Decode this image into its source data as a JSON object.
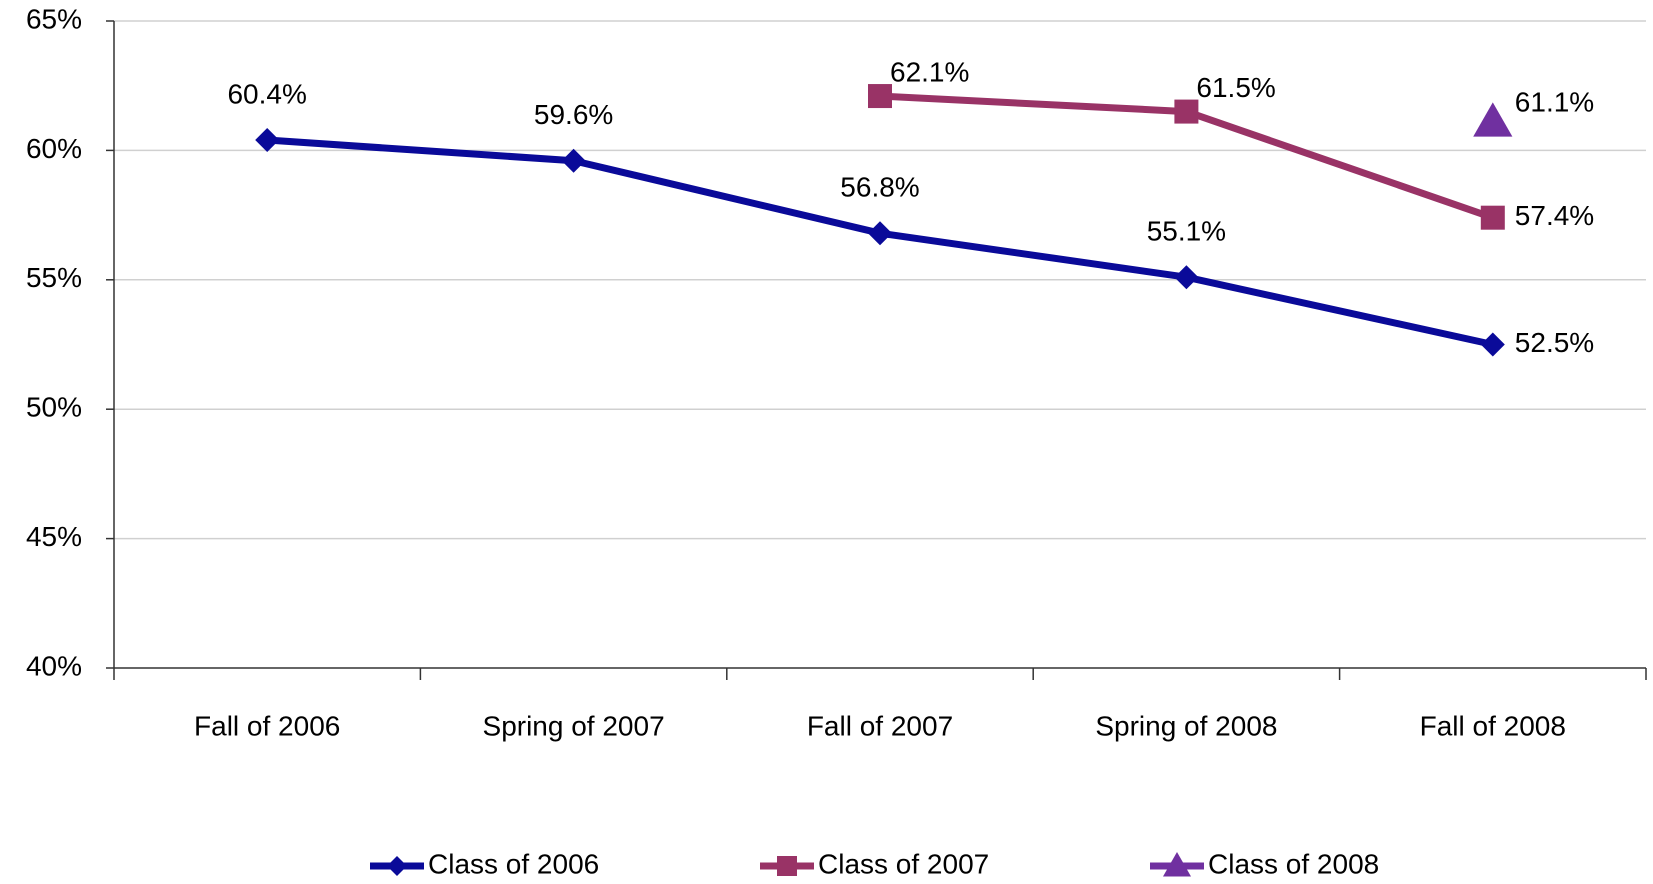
{
  "chart_data": {
    "type": "line",
    "categories": [
      "Fall of 2006",
      "Spring of 2007",
      "Fall of 2007",
      "Spring of 2008",
      "Fall of 2008"
    ],
    "series": [
      {
        "name": "Class of 2006",
        "color": "#0a0a99",
        "marker": "diamond",
        "values": [
          60.4,
          59.6,
          56.8,
          55.1,
          52.5
        ],
        "value_labels": [
          "60.4%",
          "59.6%",
          "56.8%",
          "55.1%",
          "52.5%"
        ]
      },
      {
        "name": "Class of 2007",
        "color": "#993366",
        "marker": "square",
        "values": [
          null,
          null,
          62.1,
          61.5,
          57.4
        ],
        "value_labels": [
          null,
          null,
          "62.1%",
          "61.5%",
          "57.4%"
        ]
      },
      {
        "name": "Class of 2008",
        "color": "#7030a0",
        "marker": "triangle",
        "values": [
          null,
          null,
          null,
          null,
          61.1
        ],
        "value_labels": [
          null,
          null,
          null,
          null,
          "61.1%"
        ]
      }
    ],
    "ylim": [
      40,
      65
    ],
    "yticks": [
      {
        "value": 40,
        "label": "40%"
      },
      {
        "value": 45,
        "label": "45%"
      },
      {
        "value": 50,
        "label": "50%"
      },
      {
        "value": 55,
        "label": "55%"
      },
      {
        "value": 60,
        "label": "60%"
      },
      {
        "value": 65,
        "label": "65%"
      }
    ],
    "grid": true,
    "legend": "bottom"
  }
}
